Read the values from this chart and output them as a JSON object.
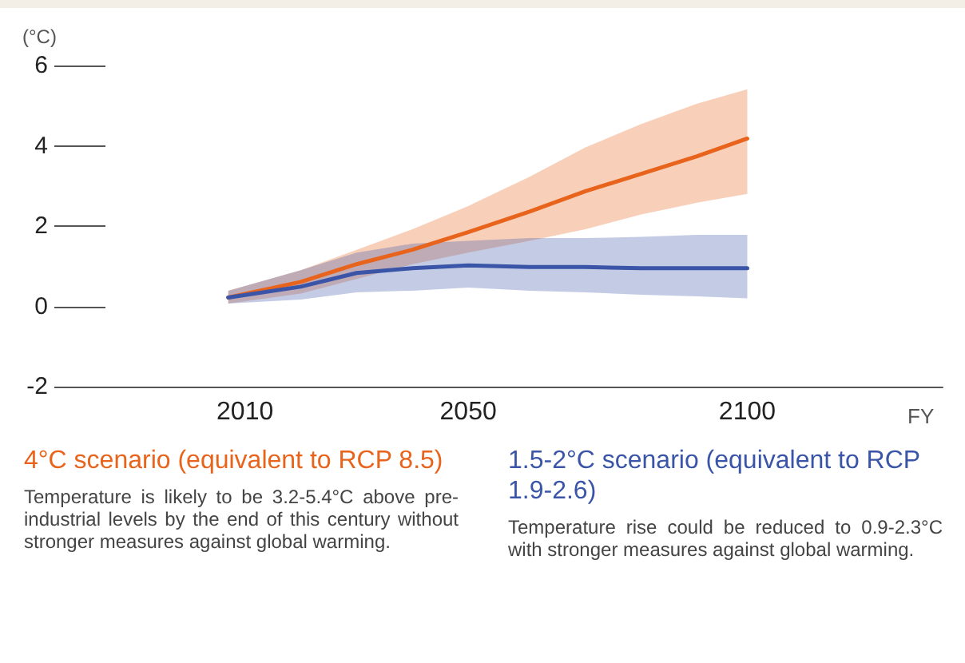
{
  "chart_data": {
    "type": "line",
    "ylabel": "(°C)",
    "xlabel": "FY",
    "xlim": [
      1985,
      2135
    ],
    "xticks": [
      2010,
      2050,
      2100
    ],
    "ylim": [
      -2,
      6
    ],
    "yticks": [
      -2,
      0,
      2,
      4,
      6
    ],
    "grid": false,
    "legend": "bottom",
    "marker": "none",
    "line_style": "solid",
    "x": [
      2007,
      2020,
      2030,
      2040,
      2050,
      2061,
      2071,
      2081,
      2091,
      2100
    ],
    "series": [
      {
        "name": "4°C scenario (equivalent to RCP 8.5)",
        "color": "#e8641c",
        "values": [
          0.22,
          0.61,
          1.05,
          1.41,
          1.85,
          2.36,
          2.87,
          3.3,
          3.74,
          4.18
        ],
        "lower": [
          0.07,
          0.32,
          0.68,
          1.05,
          1.34,
          1.63,
          1.92,
          2.29,
          2.58,
          2.8
        ],
        "upper": [
          0.39,
          0.9,
          1.41,
          1.92,
          2.5,
          3.23,
          3.96,
          4.54,
          5.05,
          5.41
        ]
      },
      {
        "name": "1.5-2°C scenario (equivalent to RCP 1.9-2.6)",
        "color": "#3a55a8",
        "values": [
          0.22,
          0.49,
          0.83,
          0.95,
          1.02,
          0.98,
          0.98,
          0.95,
          0.95,
          0.95
        ],
        "lower": [
          0.07,
          0.17,
          0.35,
          0.39,
          0.47,
          0.39,
          0.35,
          0.29,
          0.25,
          0.2
        ],
        "upper": [
          0.39,
          0.9,
          1.34,
          1.56,
          1.63,
          1.7,
          1.7,
          1.73,
          1.78,
          1.78
        ]
      }
    ],
    "annotations": [
      "Temperature is likely to be 3.2-5.4°C above pre-industrial levels by the end of this century without stronger measures against global warming.",
      "Temperature rise could be reduced to 0.9-2.3°C with stronger measures against global warming."
    ]
  }
}
